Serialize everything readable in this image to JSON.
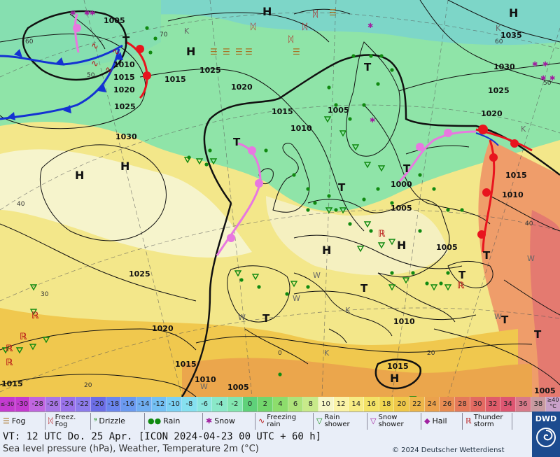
{
  "map": {
    "pressure_labels": [
      "1005",
      "1035",
      "1030",
      "1025",
      "1025",
      "1020",
      "1015",
      "1010",
      "1015",
      "1020",
      "1025",
      "1015",
      "1005",
      "1020",
      "1010",
      "1030",
      "1015",
      "1000",
      "1010",
      "1005",
      "1005",
      "1025",
      "1020",
      "1010",
      "1015",
      "1010",
      "1015",
      "1005",
      "1015",
      "1005"
    ],
    "high_marker": "H",
    "low_marker": "T",
    "temperature_marker": "K",
    "warm_marker": "W",
    "latitude_labels": [
      "60",
      "50",
      "40",
      "30",
      "20",
      "0",
      "70",
      "60",
      "50",
      "40",
      "20"
    ]
  },
  "scale": {
    "unit": "°C",
    "low_end": "≤-30",
    "high_end": "≥40",
    "values": [
      "-30",
      "-28",
      "-26",
      "-24",
      "-22",
      "-20",
      "-18",
      "-16",
      "-14",
      "-12",
      "-10",
      "-8",
      "-6",
      "-4",
      "-2",
      "0",
      "2",
      "4",
      "6",
      "8",
      "10",
      "12",
      "14",
      "16",
      "18",
      "20",
      "22",
      "24",
      "26",
      "28",
      "30",
      "32",
      "34",
      "36",
      "38"
    ],
    "colors": [
      "#c43bd0",
      "#c066e0",
      "#a876e6",
      "#9a72ea",
      "#8d7cec",
      "#6c6ee6",
      "#6a86ee",
      "#6b9af0",
      "#70aef2",
      "#74c0f4",
      "#7cd2f4",
      "#86e0f0",
      "#8ae6de",
      "#8ae8c8",
      "#82e6b0",
      "#5fd17a",
      "#72d66c",
      "#8ddd6c",
      "#aee37a",
      "#c8ea8a",
      "#f6f6c8",
      "#fbf3a6",
      "#f7ec84",
      "#f3e266",
      "#f0d650",
      "#efc84a",
      "#edb64a",
      "#eba14c",
      "#e88c52",
      "#e57a5a",
      "#e36a62",
      "#e05c6a",
      "#de5672",
      "#d87a8a",
      "#c89aa0"
    ]
  },
  "legend": {
    "items": [
      {
        "icon": "fog-icon",
        "label": "Fog"
      },
      {
        "icon": "freezing-fog-icon",
        "label": "Freez. Fog"
      },
      {
        "icon": "drizzle-icon",
        "label": "Drizzle"
      },
      {
        "icon": "rain-icon",
        "label": "Rain"
      },
      {
        "icon": "snow-icon",
        "label": "Snow"
      },
      {
        "icon": "freezing-rain-icon",
        "label": "Freezing rain"
      },
      {
        "icon": "rain-shower-icon",
        "label": "Rain shower"
      },
      {
        "icon": "snow-shower-icon",
        "label": "Snow shower"
      },
      {
        "icon": "hail-icon",
        "label": "Hail"
      },
      {
        "icon": "thunderstorm-icon",
        "label": "Thunder storm"
      }
    ]
  },
  "info": {
    "valid_time": "VT: 12 UTC Do.  25 Apr. [ICON 2024-04-23  00 UTC + 60 h]",
    "description": "Sea level pressure (hPa), Weather, Temperature 2m (°C)",
    "copyright": "© 2024 Deutscher Wetterdienst",
    "logo": "DWD"
  },
  "colors": {
    "warm_front": "#e8141e",
    "cold_front": "#1432d2",
    "occluded_front": "#e878e0",
    "isobar": "#111111",
    "legend_bg": "#e9eef8",
    "dwd_blue": "#1c4b8f"
  }
}
